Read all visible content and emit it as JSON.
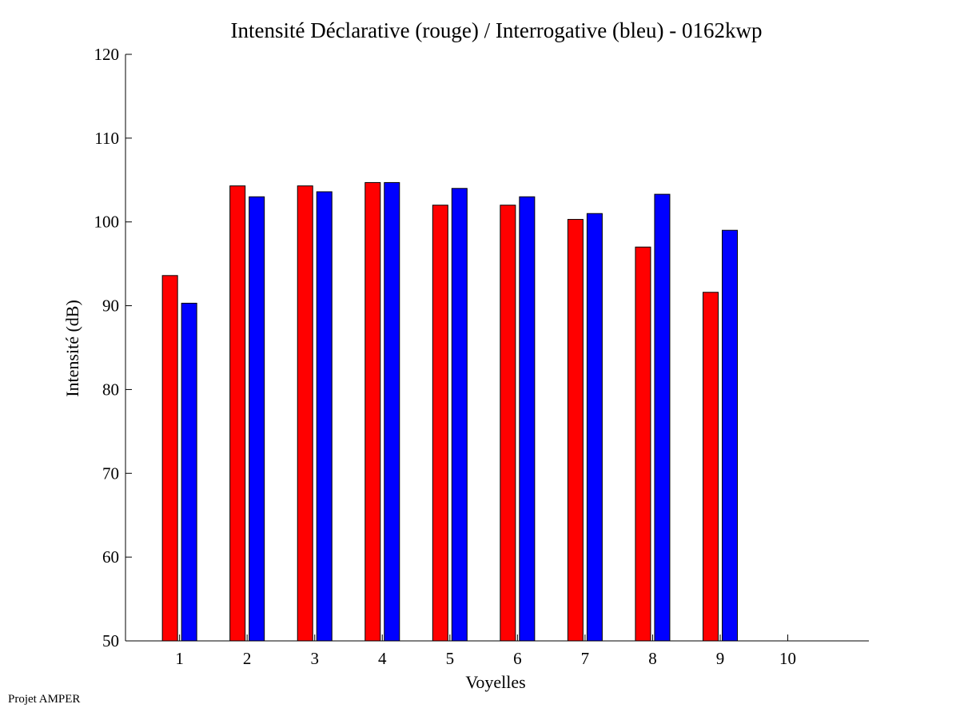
{
  "chart_data": {
    "type": "bar",
    "title": "Intensité Déclarative (rouge) / Interrogative (bleu) - 0162kwp",
    "xlabel": "Voyelles",
    "ylabel": "Intensité (dB)",
    "categories": [
      "1",
      "2",
      "3",
      "4",
      "5",
      "6",
      "7",
      "8",
      "9",
      "10"
    ],
    "series": [
      {
        "color": "#ff0000",
        "values": [
          93.6,
          104.3,
          104.3,
          104.7,
          102.0,
          102.0,
          100.3,
          97.0,
          91.6,
          null
        ]
      },
      {
        "color": "#0000ff",
        "values": [
          90.3,
          103.0,
          103.6,
          104.7,
          104.0,
          103.0,
          101.0,
          103.3,
          99.0,
          null
        ]
      }
    ],
    "ylim": [
      50,
      120
    ],
    "xlim": [
      0.2,
      11.2
    ],
    "yticks": [
      50,
      60,
      70,
      80,
      90,
      100,
      110,
      120
    ],
    "grid": false,
    "legend": "none"
  },
  "footer": {
    "credit": "Projet AMPER"
  }
}
